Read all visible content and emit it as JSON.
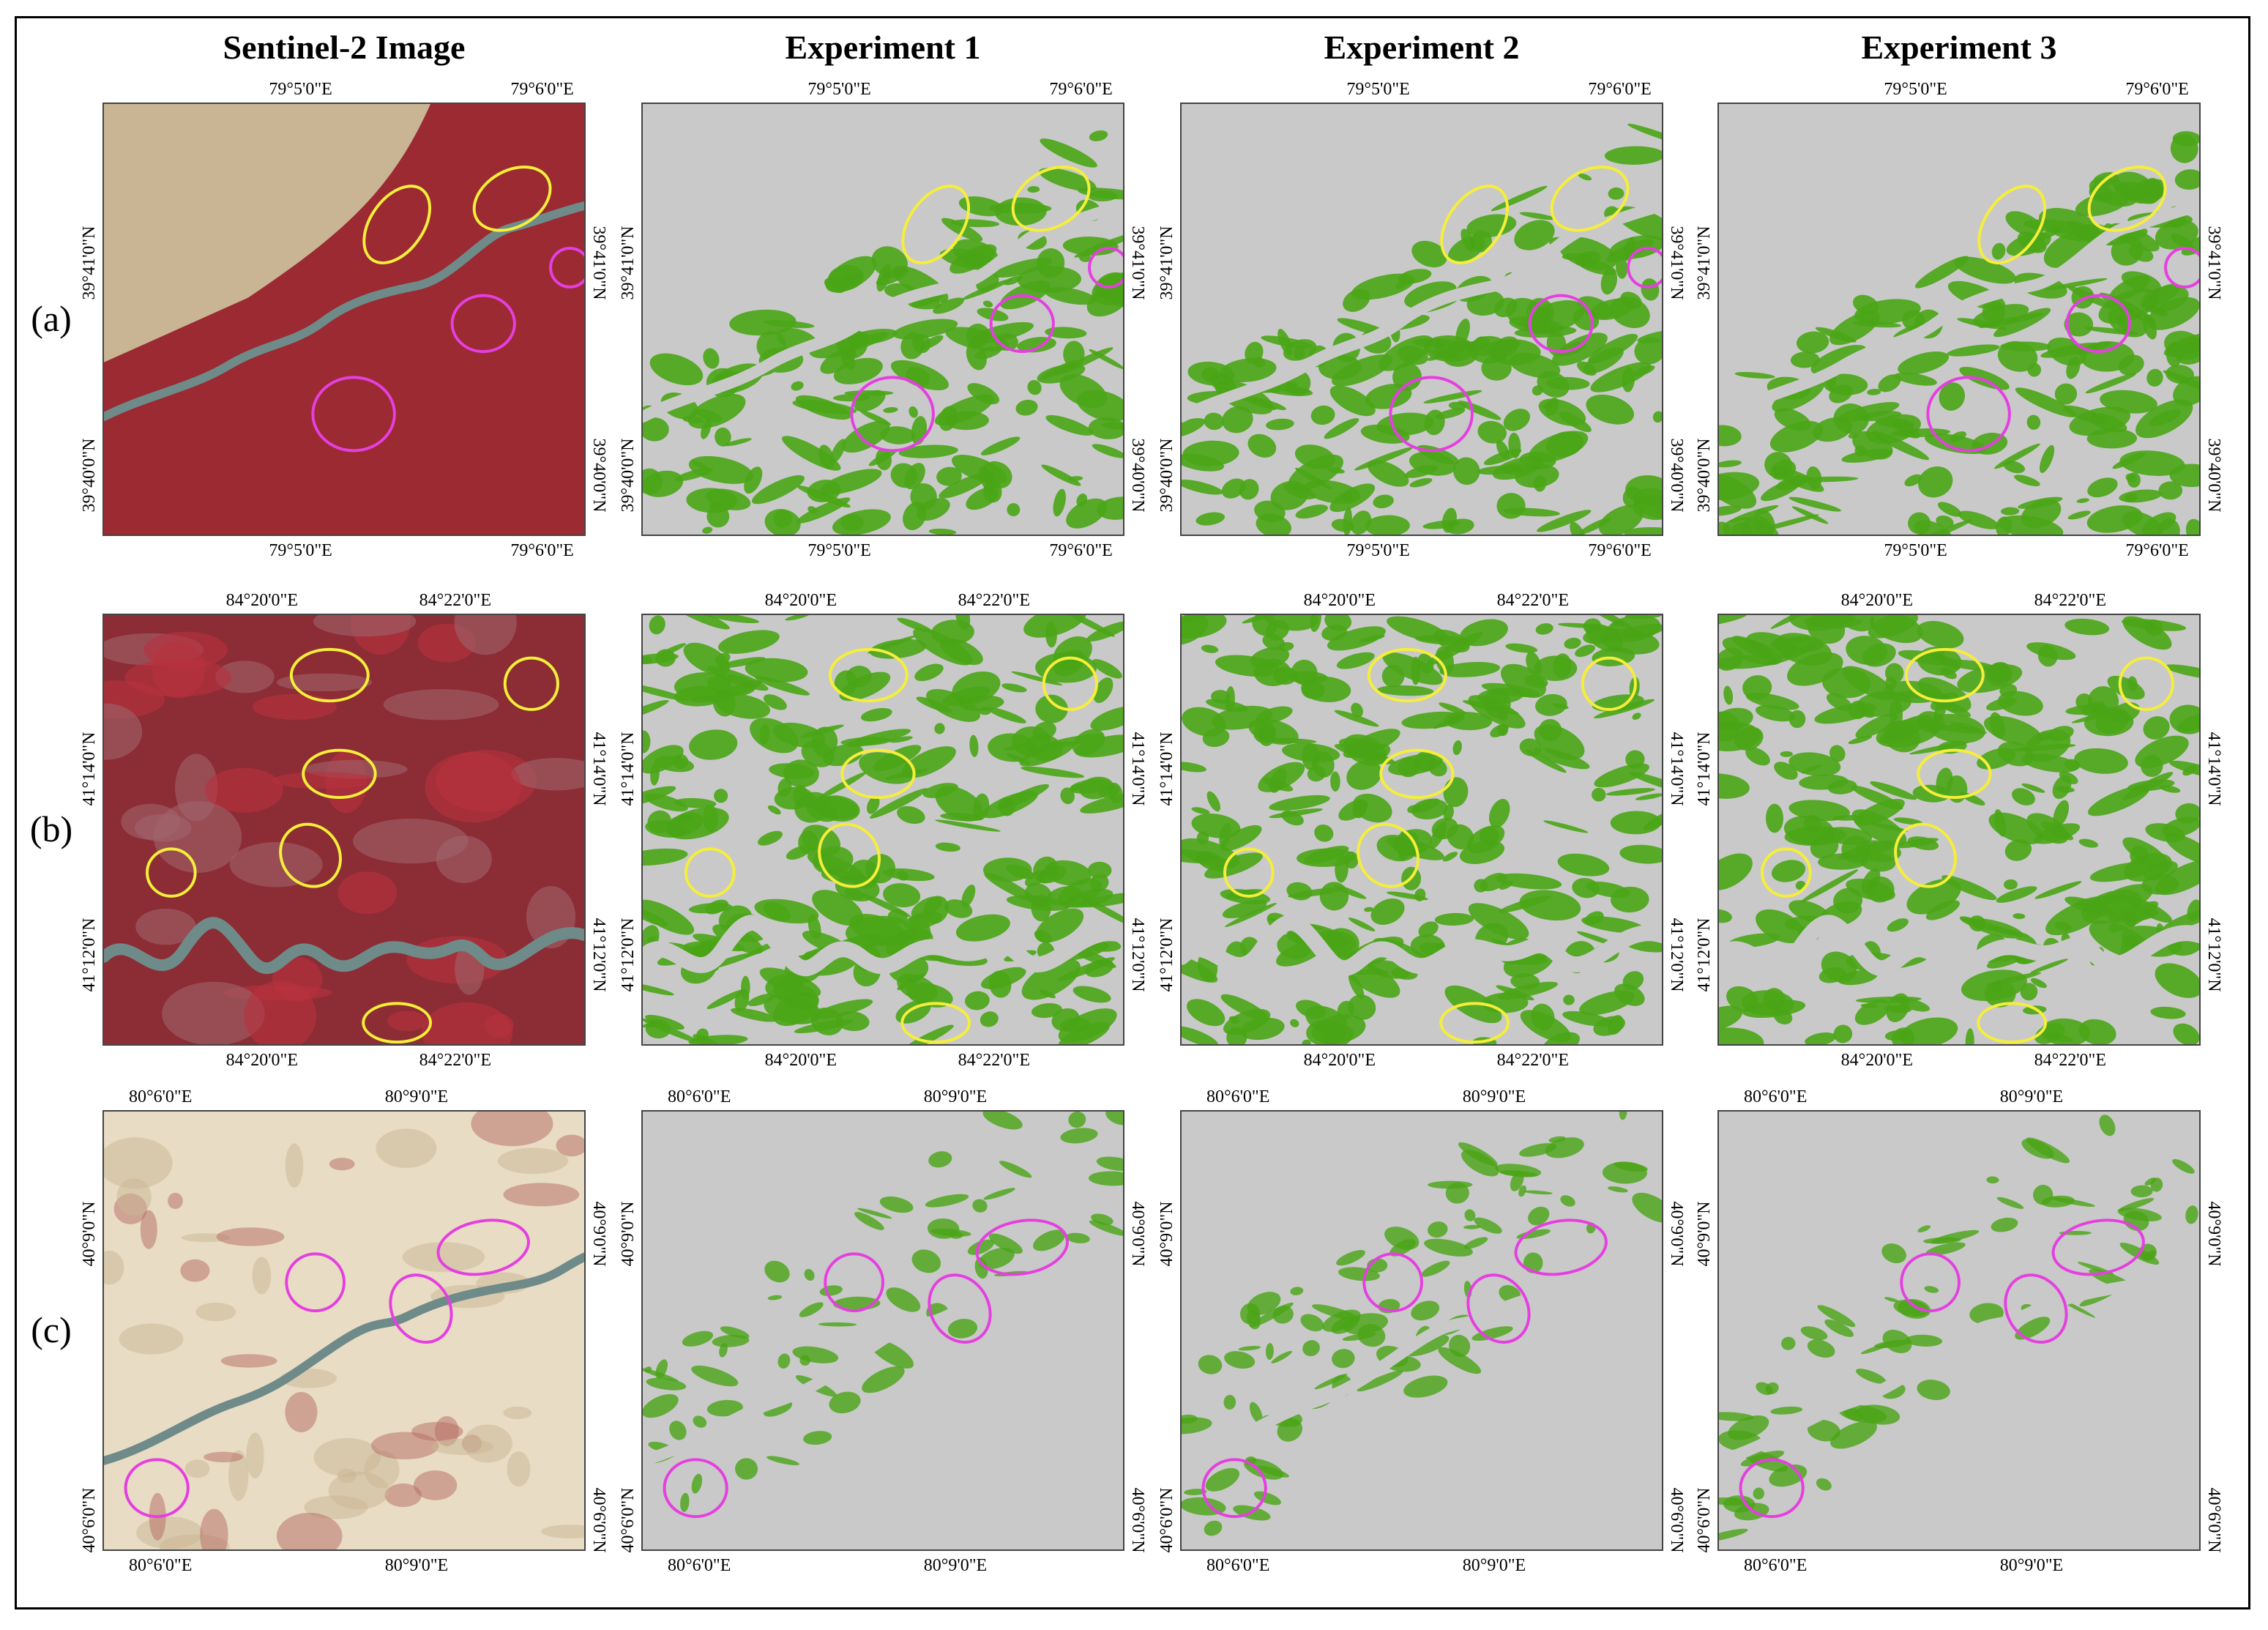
{
  "column_titles": [
    "Sentinel-2 Image",
    "Experiment 1",
    "Experiment 2",
    "Experiment 3"
  ],
  "colors": {
    "background": "#c9c9c9",
    "vegetation": "#4aa516",
    "yellow_circle": "#f5ee3a",
    "magenta_circle": "#e53fe0",
    "river": "#6e8b89",
    "desert": "#c9b593",
    "red_veg": "#b4303c"
  },
  "rows": [
    {
      "label": "(a)",
      "top_ticks": [
        "79°5'0\"E",
        "79°6'0\"E"
      ],
      "bottom_ticks": [
        "79°5'0\"E",
        "79°6'0\"E"
      ],
      "left_ticks": [
        "39°41'0\"N",
        "39°40'0\"N"
      ],
      "right_ticks": [
        "39°41'0\"N",
        "39°40'0\"N"
      ]
    },
    {
      "label": "(b)",
      "top_ticks": [
        "84°20'0\"E",
        "84°22'0\"E"
      ],
      "bottom_ticks": [
        "84°20'0\"E",
        "84°22'0\"E"
      ],
      "left_ticks": [
        "41°14'0\"N",
        "41°12'0\"N"
      ],
      "right_ticks": [
        "41°14'0\"N",
        "41°12'0\"N"
      ]
    },
    {
      "label": "(c)",
      "top_ticks": [
        "80°6'0\"E",
        "80°9'0\"E"
      ],
      "bottom_ticks": [
        "80°6'0\"E",
        "80°9'0\"E"
      ],
      "left_ticks": [
        "40°9'0\"N",
        "40°6'0\"N"
      ],
      "right_ticks": [
        "40°9'0\"N",
        "40°6'0\"N"
      ]
    }
  ]
}
